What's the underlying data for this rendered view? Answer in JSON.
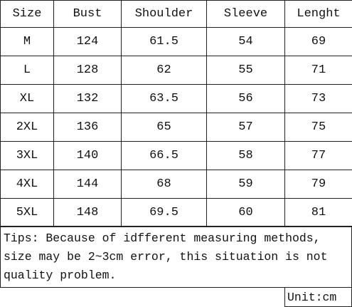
{
  "table": {
    "header": [
      "Size",
      "Bust",
      "Shoulder",
      "Sleeve",
      "Lenght"
    ],
    "rows": [
      [
        "M",
        "124",
        "61.5",
        "54",
        "69"
      ],
      [
        "L",
        "128",
        "62",
        "55",
        "71"
      ],
      [
        "XL",
        "132",
        "63.5",
        "56",
        "73"
      ],
      [
        "2XL",
        "136",
        "65",
        "57",
        "75"
      ],
      [
        "3XL",
        "140",
        "66.5",
        "58",
        "77"
      ],
      [
        "4XL",
        "144",
        "68",
        "59",
        "79"
      ],
      [
        "5XL",
        "148",
        "69.5",
        "60",
        "81"
      ]
    ]
  },
  "tips": [
    "Tips: Because of idfferent measuring methods,",
    "size may be 2~3cm error, this situation is not",
    "quality problem."
  ],
  "unit": "Unit:cm"
}
